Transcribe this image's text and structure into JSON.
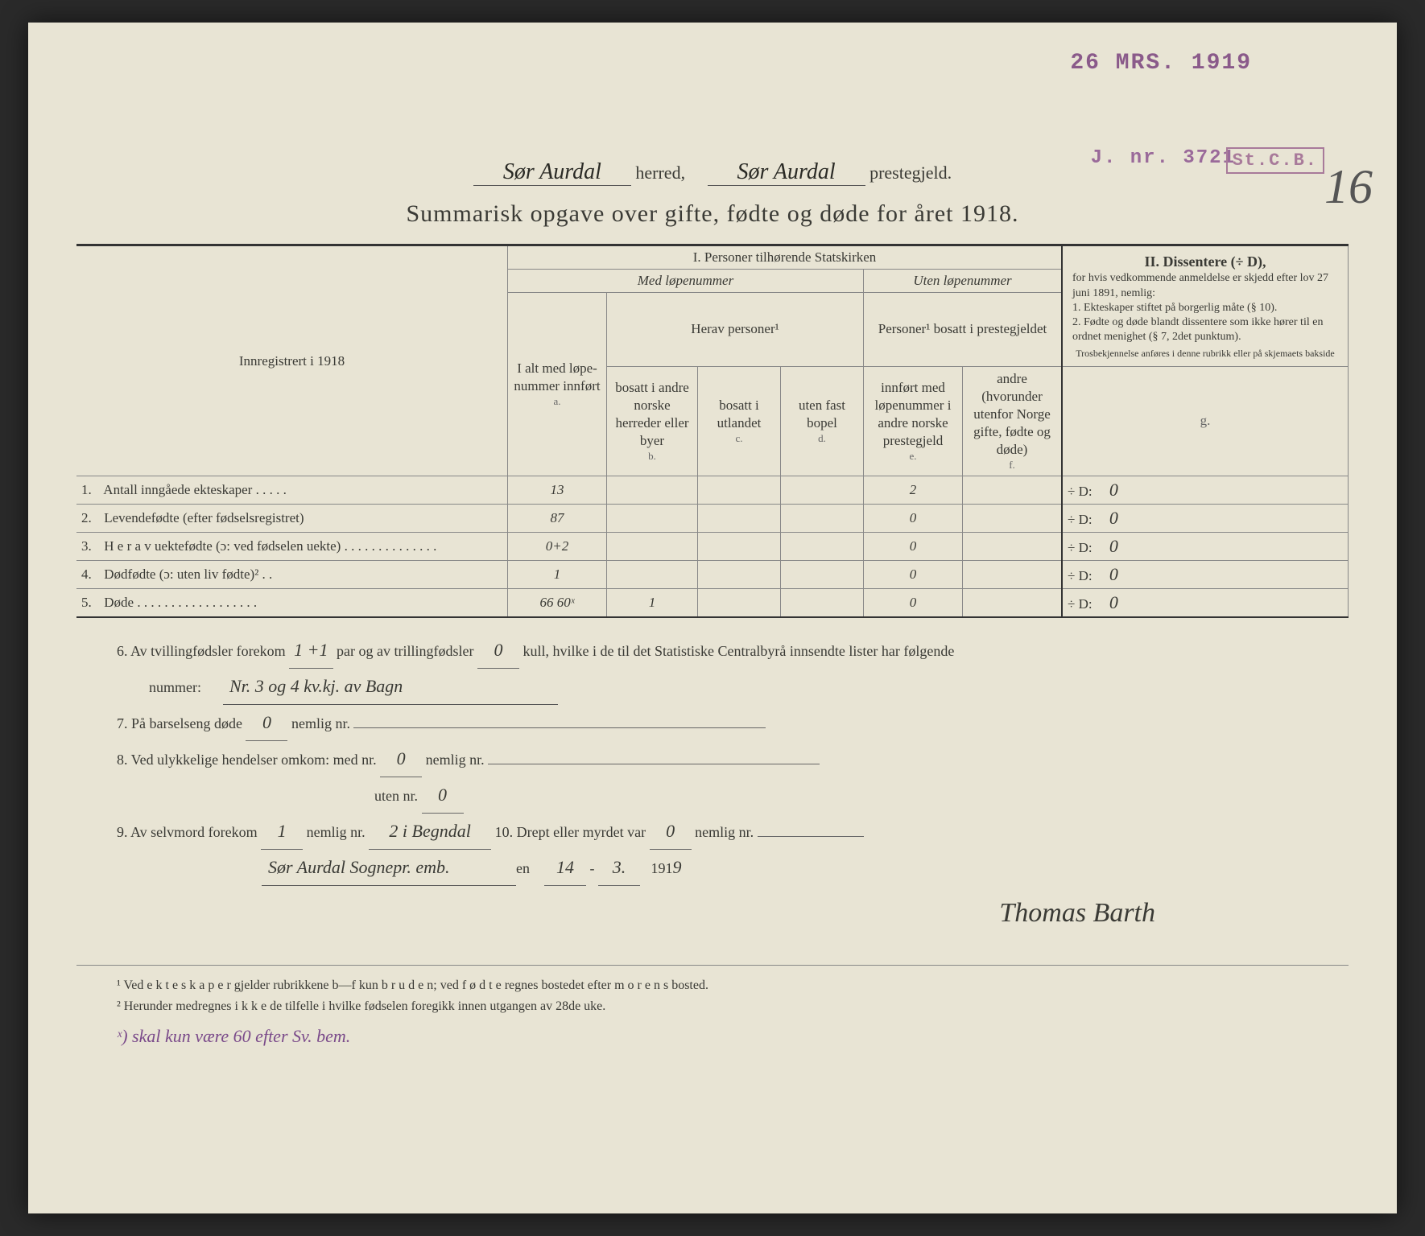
{
  "stamps": {
    "date": "26 MRS. 1919",
    "jnr": "J. nr. 3721",
    "stcb": "St.C.B."
  },
  "page_number": "16",
  "header": {
    "herred_value": "Sør Aurdal",
    "herred_label": "herred,",
    "prestegjeld_value": "Sør Aurdal",
    "prestegjeld_label": "prestegjeld."
  },
  "title": "Summarisk opgave over gifte, fødte og døde for året 1918.",
  "table": {
    "registered_label": "Innregistrert i 1918",
    "section1": "I.  Personer tilhørende Statskirken",
    "med_lopenummer": "Med løpenummer",
    "uten_lopenummer": "Uten løpenummer",
    "ialt_label": "I alt med løpe-nummer innført",
    "herav_personer": "Herav personer¹",
    "personer_bosatt": "Personer¹ bosatt i prestegjeldet",
    "col_b": "bosatt i andre norske herreder eller byer",
    "col_c": "bosatt i utlandet",
    "col_d": "uten fast bopel",
    "col_e": "innført med løpenummer i andre norske prestegjeld",
    "col_f": "andre (hvorunder utenfor Norge gifte, fødte og døde)",
    "section2": "II.  Dissentere (÷ D),",
    "diss_text1": "for hvis vedkommende anmeldelse er skjedd efter lov 27 juni 1891, nemlig:",
    "diss_item1": "1. Ekteskaper stiftet på borgerlig måte (§ 10).",
    "diss_item2": "2. Fødte og døde blandt dissentere som ikke hører til en ordnet menighet (§ 7, 2det punktum).",
    "diss_note": "Trosbekjennelse anføres i denne rubrikk eller på skjemaets bakside",
    "letters": {
      "a": "a.",
      "b": "b.",
      "c": "c.",
      "d": "d.",
      "e": "e.",
      "f": "f.",
      "g": "g."
    },
    "rows": [
      {
        "num": "1.",
        "label": "Antall inngåede ekteskaper . . . . .",
        "a": "13",
        "b": "",
        "c": "",
        "d": "",
        "e": "2",
        "f": "",
        "g_prefix": "÷ D:",
        "g": "0"
      },
      {
        "num": "2.",
        "label": "Levendefødte (efter fødselsregistret)",
        "a": "87",
        "b": "",
        "c": "",
        "d": "",
        "e": "0",
        "f": "",
        "g_prefix": "÷ D:",
        "g": "0"
      },
      {
        "num": "3.",
        "label": "H e r a v uektefødte (ɔ: ved fødselen uekte) . . . . . . . . . . . . . .",
        "a": "0+2",
        "b": "",
        "c": "",
        "d": "",
        "e": "0",
        "f": "",
        "g_prefix": "÷ D:",
        "g": "0"
      },
      {
        "num": "4.",
        "label": "Dødfødte (ɔ: uten liv fødte)² . .",
        "a": "1",
        "b": "",
        "c": "",
        "d": "",
        "e": "0",
        "f": "",
        "g_prefix": "÷ D:",
        "g": "0"
      },
      {
        "num": "5.",
        "label": "Døde . . . . . . . . . . . . . . . . . .",
        "a": "66 60ˣ",
        "b": "1",
        "c": "",
        "d": "",
        "e": "0",
        "f": "",
        "g_prefix": "÷ D:",
        "g": "0"
      }
    ]
  },
  "bottom": {
    "line6_a": "6.  Av tvillingfødsler forekom",
    "line6_twin": "1 +1",
    "line6_b": "par og av trillingfødsler",
    "line6_trip": "0",
    "line6_c": "kull, hvilke i de til det Statistiske Centralbyrå innsendte lister har følgende",
    "line6_d": "nummer:",
    "line6_value": "Nr. 3 og 4 kv.kj. av Bagn",
    "line7_a": "7.  På barselseng døde",
    "line7_v": "0",
    "line7_b": "nemlig nr.",
    "line8_a": "8.  Ved ulykkelige hendelser omkom:  med nr.",
    "line8_v1": "0",
    "line8_b": "nemlig nr.",
    "line8_c": "uten nr.",
    "line8_v2": "0",
    "line9_a": "9.  Av selvmord forekom",
    "line9_v1": "1",
    "line9_b": "nemlig nr.",
    "line9_v2": "2 i Begndal",
    "line9_c": "10.  Drept eller myrdet var",
    "line9_v3": "0",
    "line9_d": "nemlig nr.",
    "place": "Sør Aurdal Sognepr. emb.",
    "den": "en",
    "date_day": "14",
    "date_month": "3.",
    "date_year_pre": "191",
    "date_year": "9",
    "signature": "Thomas Barth"
  },
  "footnotes": {
    "f1": "¹  Ved e k t e s k a p e r gjelder rubrikkene b—f kun b r u d e n; ved f ø d t e regnes bostedet efter m o r e n s bosted.",
    "f2": "²  Herunder medregnes i k k e de tilfelle i hvilke fødselen foregikk innen utgangen av 28de uke."
  },
  "purple_note": "ˣ) skal kun være 60 efter Sv. bem."
}
